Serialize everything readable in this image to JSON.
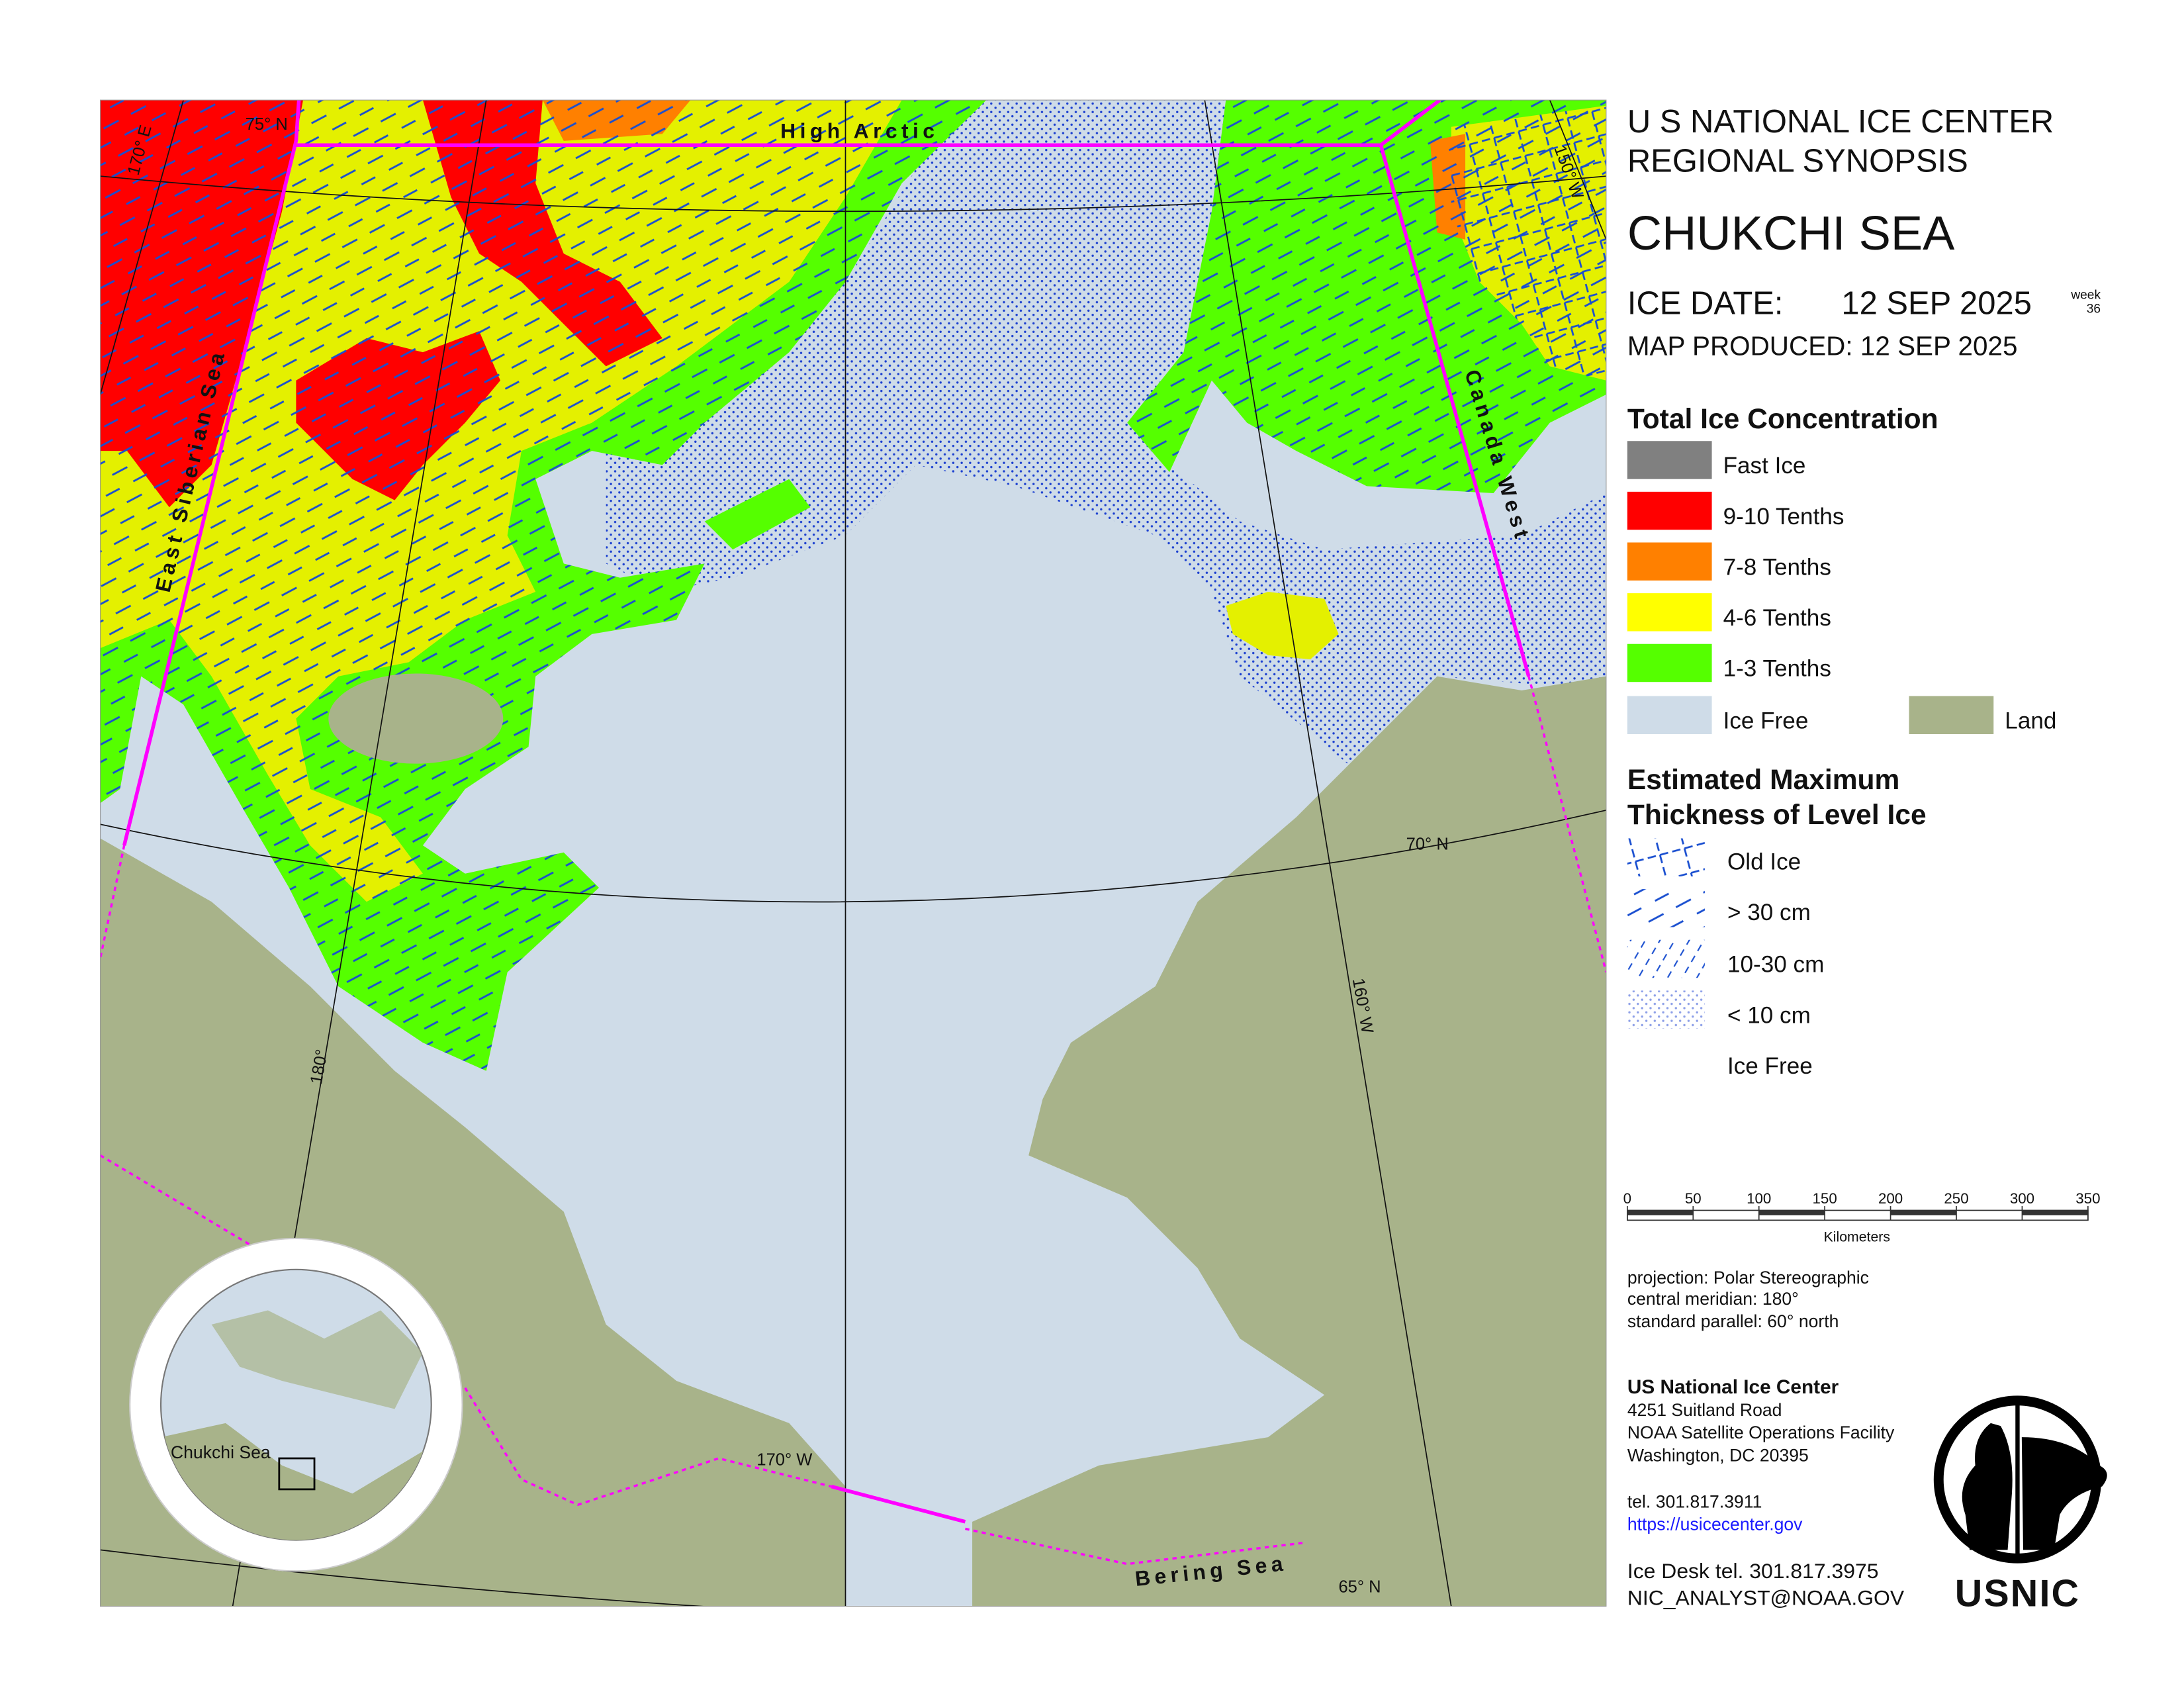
{
  "header": {
    "agency": "U S NATIONAL ICE CENTER",
    "product": "REGIONAL SYNOPSIS",
    "region": "CHUKCHI SEA",
    "ice_date_label": "ICE DATE:",
    "ice_date": "12 SEP 2025",
    "week_label": "week",
    "week": "36",
    "map_produced": "MAP PRODUCED:  12 SEP 2025"
  },
  "concentration_legend": {
    "title": "Total Ice Concentration",
    "items": [
      "Fast Ice",
      "9-10 Tenths",
      "7-8 Tenths",
      "4-6 Tenths",
      "1-3 Tenths",
      "Ice Free",
      "Land"
    ]
  },
  "thickness_legend": {
    "title_lines": [
      "Estimated Maximum",
      "Thickness of Level Ice"
    ],
    "items": [
      "Old Ice",
      "> 30 cm",
      "10-30 cm",
      "< 10 cm",
      "Ice Free"
    ]
  },
  "scale_bar": {
    "ticks": [
      0,
      50,
      100,
      150,
      200,
      250,
      300,
      350
    ],
    "unit": "Kilometers"
  },
  "projection": [
    "projection: Polar Stereographic",
    "central meridian: 180°",
    "standard parallel:  60° north"
  ],
  "contact": {
    "name": "US National Ice Center",
    "address": [
      "4251 Suitland Road",
      "NOAA Satellite Operations Facility",
      "Washington, DC  20395"
    ],
    "tel": "tel. 301.817.3911",
    "url": "https://usicecenter.gov",
    "ice_desk": "Ice Desk tel. 301.817.3975",
    "email": "NIC_ANALYST@NOAA.GOV",
    "logo": "USNIC"
  },
  "map": {
    "regions": [
      "High Arctic",
      "East Siberian Sea",
      "Canada West",
      "Bering Sea"
    ],
    "graticule": [
      "75° N",
      "70° N",
      "65° N",
      "170° E",
      "180°",
      "170° W",
      "160° W",
      "150° W"
    ],
    "inset_label": "Chukchi Sea"
  }
}
